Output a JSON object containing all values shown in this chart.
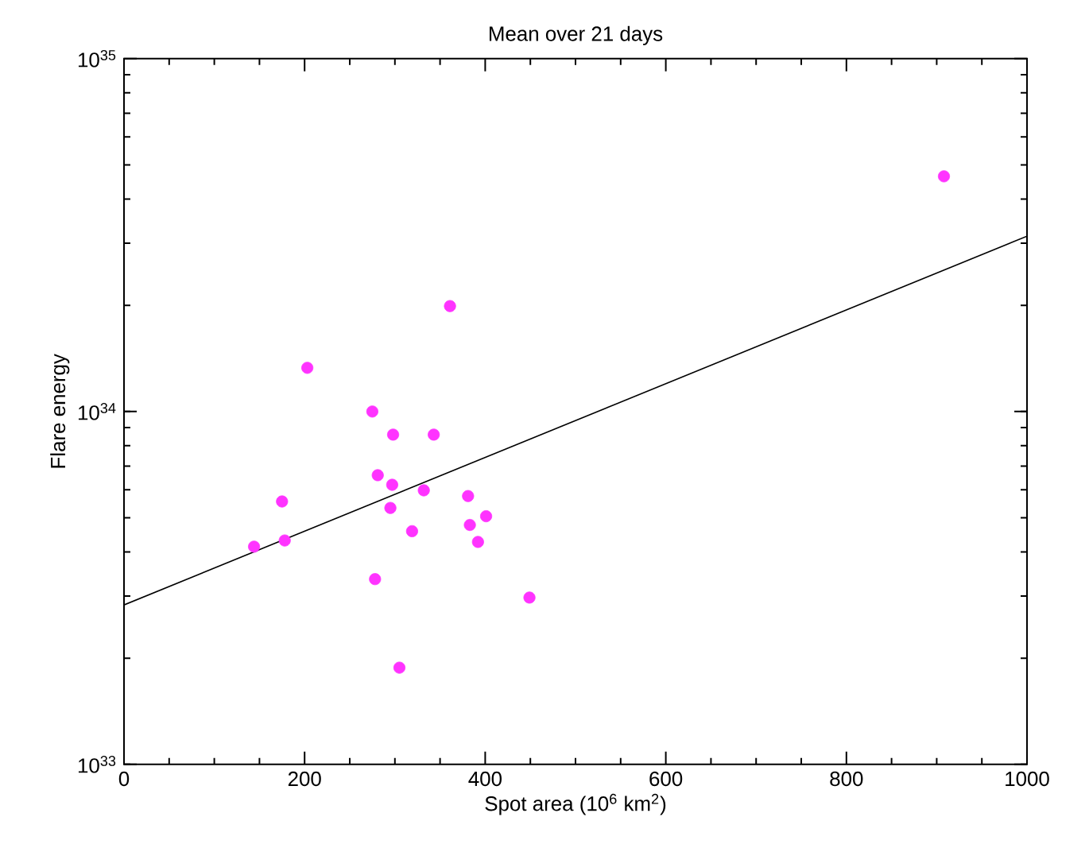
{
  "chart_data": {
    "type": "scatter",
    "title": "Mean over 21 days",
    "xlabel": "Spot area (10$^{6}$ km$^{2}$)",
    "ylabel": "Flare energy",
    "log": "y",
    "grid": false,
    "marker": "circle",
    "xlim": [
      0,
      1000
    ],
    "xticks": [
      0,
      200,
      400,
      600,
      800,
      1000
    ],
    "ylim": [
      1e+33,
      1e+35
    ],
    "yticks": [
      {
        "value": 1e+33,
        "label": "10$^{33}$"
      },
      {
        "value": 1e+34,
        "label": "10$^{34}$"
      },
      {
        "value": 1e+35,
        "label": "10$^{35}$"
      }
    ],
    "series": [
      {
        "color": "#ff33ff",
        "x": [
          144,
          175,
          178,
          203,
          275,
          298,
          343,
          281,
          297,
          332,
          295,
          319,
          278,
          305,
          361,
          381,
          383,
          401,
          392,
          449,
          908
        ],
        "values": [
          4.14e+33,
          5.56e+33,
          4.31e+33,
          1.33e+34,
          1e+34,
          8.6e+33,
          8.6e+33,
          6.6e+33,
          6.2e+33,
          5.98e+33,
          5.33e+33,
          4.58e+33,
          3.35e+33,
          1.88e+33,
          1.99e+34,
          5.76e+33,
          4.77e+33,
          5.05e+33,
          4.27e+33,
          2.97e+33,
          4.64e+34
        ]
      },
      {
        "type": "line",
        "color": "#000000",
        "marker": "none",
        "line_style": "solid",
        "x": [
          0,
          1000
        ],
        "values": [
          2.83e+33,
          3.14e+34
        ]
      }
    ]
  }
}
